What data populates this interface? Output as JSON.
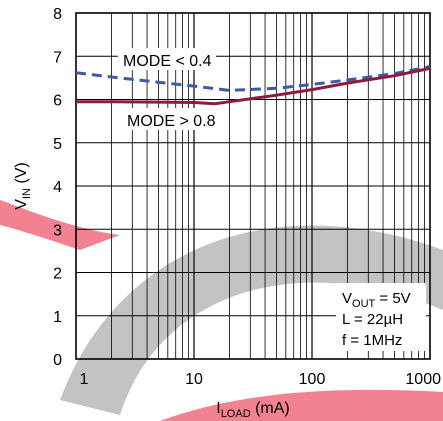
{
  "chart_data": {
    "type": "line",
    "x_scale": "log",
    "xlim": [
      1,
      1000
    ],
    "ylim": [
      0,
      8
    ],
    "grid": true,
    "x_ticks": [
      1,
      10,
      100,
      1000
    ],
    "x_tick_labels": [
      "1",
      "10",
      "100",
      "1000"
    ],
    "y_ticks": [
      0,
      1,
      2,
      3,
      4,
      5,
      6,
      7,
      8
    ],
    "y_tick_labels": [
      "0",
      "1",
      "2",
      "3",
      "4",
      "5",
      "6",
      "7",
      "8"
    ],
    "ylabel": {
      "main": "V",
      "sub": "IN",
      "unit": " (V)"
    },
    "xlabel": {
      "main": "I",
      "sub": "LOAD",
      "unit": " (mA)"
    },
    "series": [
      {
        "name": "MODE < 0.4",
        "style": "dashed",
        "color": "#3a5bab",
        "x": [
          1,
          2,
          5,
          10,
          20,
          50,
          100,
          200,
          500,
          1000
        ],
        "y": [
          6.62,
          6.52,
          6.4,
          6.31,
          6.21,
          6.26,
          6.35,
          6.45,
          6.6,
          6.76
        ]
      },
      {
        "name": "MODE > 0.8",
        "style": "solid",
        "color": "#8e1b3c",
        "x": [
          1,
          2,
          5,
          10,
          15,
          20,
          50,
          100,
          200,
          500,
          1000
        ],
        "y": [
          5.95,
          5.95,
          5.94,
          5.93,
          5.9,
          5.95,
          6.1,
          6.23,
          6.38,
          6.55,
          6.72
        ]
      }
    ],
    "annotation": {
      "vout_main": "V",
      "vout_sub": "OUT",
      "vout_value": " = 5V",
      "inductance": "L = 22µH",
      "frequency": "f = 1MHz"
    },
    "watermark_color": "#f06c7c",
    "watermark_gray": "#b9b9b9"
  }
}
